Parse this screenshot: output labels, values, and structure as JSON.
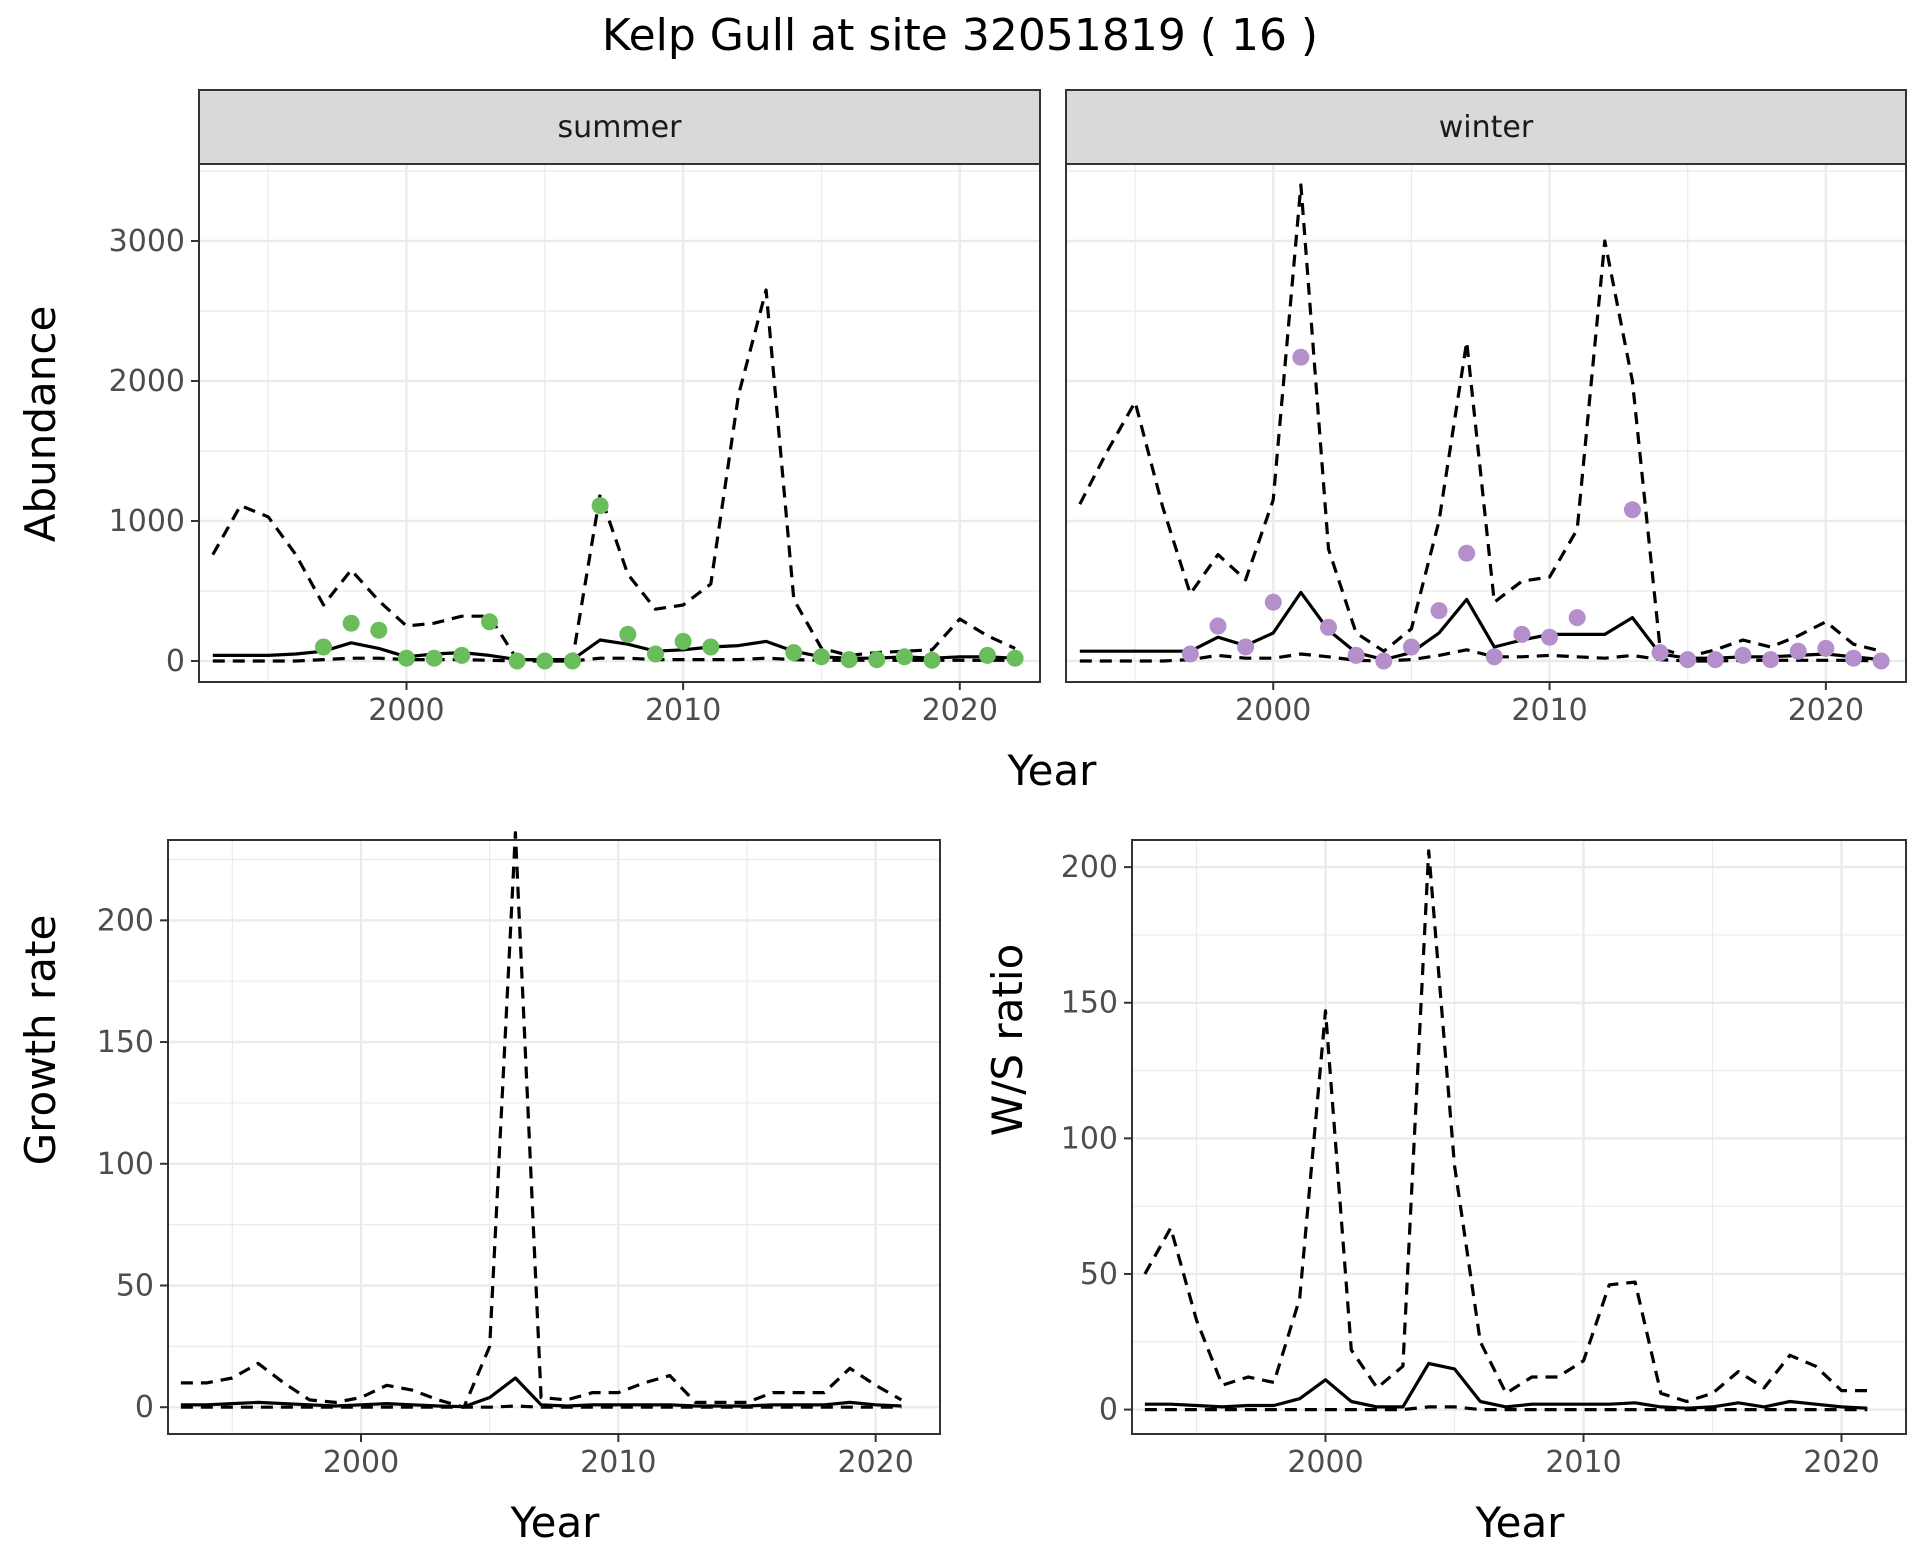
{
  "figure": {
    "title": "Kelp Gull at site 32051819 ( 16 )"
  },
  "colors": {
    "summer_points": "#6ABD5B",
    "winter_points": "#B48FCC",
    "line": "#000000",
    "strip": "#D9D9D9"
  },
  "chart_data": [
    {
      "id": "abundance",
      "type": "line",
      "title": "",
      "xlabel": "Year",
      "ylabel": "Abundance",
      "xlim": [
        1992.5,
        2022.9
      ],
      "ylim": [
        -150,
        3550
      ],
      "x_ticks": [
        2000,
        2010,
        2020
      ],
      "y_ticks": [
        0,
        1000,
        2000,
        3000
      ],
      "facets": [
        {
          "name": "summer",
          "label": "summer",
          "x": [
            1993,
            1994,
            1995,
            1996,
            1997,
            1998,
            1999,
            2000,
            2001,
            2002,
            2003,
            2004,
            2005,
            2006,
            2007,
            2008,
            2009,
            2010,
            2011,
            2012,
            2013,
            2014,
            2015,
            2016,
            2017,
            2018,
            2019,
            2020,
            2021,
            2022
          ],
          "series": [
            {
              "name": "upper",
              "style": "dashed",
              "values": [
                760,
                1110,
                1030,
                760,
                400,
                650,
                430,
                250,
                270,
                320,
                320,
                10,
                10,
                10,
                1190,
                620,
                370,
                400,
                550,
                1900,
                2650,
                440,
                90,
                40,
                60,
                70,
                80,
                300,
                180,
                90
              ]
            },
            {
              "name": "fit",
              "style": "solid",
              "values": [
                40,
                40,
                40,
                50,
                70,
                130,
                90,
                30,
                50,
                60,
                40,
                10,
                10,
                10,
                150,
                120,
                70,
                80,
                100,
                110,
                140,
                70,
                30,
                20,
                20,
                30,
                20,
                30,
                30,
                20
              ]
            },
            {
              "name": "lower",
              "style": "dashed",
              "values": [
                0,
                0,
                0,
                0,
                10,
                20,
                20,
                10,
                10,
                10,
                5,
                0,
                0,
                0,
                20,
                20,
                10,
                10,
                10,
                10,
                20,
                10,
                5,
                5,
                5,
                5,
                5,
                5,
                5,
                5
              ]
            }
          ],
          "points": {
            "x": [
              1997,
              1998,
              1999,
              2000,
              2001,
              2002,
              2003,
              2004,
              2005,
              2006,
              2007,
              2008,
              2009,
              2010,
              2011,
              2014,
              2015,
              2016,
              2017,
              2018,
              2019,
              2021,
              2022
            ],
            "y": [
              100,
              270,
              220,
              20,
              20,
              40,
              280,
              0,
              0,
              0,
              1110,
              190,
              50,
              140,
              100,
              60,
              30,
              10,
              10,
              30,
              5,
              40,
              20
            ]
          }
        },
        {
          "name": "winter",
          "label": "winter",
          "x": [
            1993,
            1994,
            1995,
            1996,
            1997,
            1998,
            1999,
            2000,
            2001,
            2002,
            2003,
            2004,
            2005,
            2006,
            2007,
            2008,
            2009,
            2010,
            2011,
            2012,
            2013,
            2014,
            2015,
            2016,
            2017,
            2018,
            2019,
            2020,
            2021,
            2022
          ],
          "series": [
            {
              "name": "upper",
              "style": "dashed",
              "values": [
                1120,
                1500,
                1850,
                1100,
                480,
                760,
                580,
                1150,
                3400,
                800,
                200,
                70,
                230,
                1000,
                2280,
                420,
                570,
                600,
                940,
                3000,
                2000,
                90,
                30,
                80,
                150,
                100,
                180,
                280,
                120,
                70
              ]
            },
            {
              "name": "fit",
              "style": "solid",
              "values": [
                70,
                70,
                70,
                70,
                70,
                170,
                110,
                200,
                490,
                220,
                60,
                10,
                60,
                200,
                440,
                100,
                150,
                190,
                190,
                190,
                310,
                50,
                20,
                20,
                30,
                30,
                40,
                50,
                30,
                10
              ]
            },
            {
              "name": "lower",
              "style": "dashed",
              "values": [
                0,
                0,
                0,
                0,
                10,
                40,
                20,
                20,
                50,
                30,
                5,
                0,
                10,
                40,
                80,
                30,
                30,
                40,
                30,
                20,
                40,
                10,
                0,
                0,
                5,
                5,
                5,
                5,
                5,
                0
              ]
            }
          ],
          "points": {
            "x": [
              1997,
              1998,
              1999,
              2000,
              2001,
              2002,
              2003,
              2004,
              2005,
              2006,
              2007,
              2008,
              2009,
              2010,
              2011,
              2013,
              2014,
              2015,
              2016,
              2017,
              2018,
              2019,
              2020,
              2021,
              2022
            ],
            "y": [
              50,
              250,
              100,
              420,
              2170,
              240,
              40,
              0,
              100,
              360,
              770,
              30,
              190,
              170,
              310,
              1080,
              60,
              10,
              10,
              40,
              10,
              70,
              90,
              20,
              0
            ]
          }
        }
      ]
    },
    {
      "id": "growth",
      "type": "line",
      "title": "",
      "xlabel": "Year",
      "ylabel": "Growth rate",
      "xlim": [
        1992.5,
        2022.5
      ],
      "ylim": [
        -11,
        233
      ],
      "x_ticks": [
        2000,
        2010,
        2020
      ],
      "y_ticks": [
        0,
        50,
        100,
        150,
        200
      ],
      "x": [
        1993,
        1994,
        1995,
        1996,
        1997,
        1998,
        1999,
        2000,
        2001,
        2002,
        2003,
        2004,
        2005,
        2006,
        2007,
        2008,
        2009,
        2010,
        2011,
        2012,
        2013,
        2014,
        2015,
        2016,
        2017,
        2018,
        2019,
        2020,
        2021
      ],
      "series": [
        {
          "name": "upper",
          "style": "dashed",
          "values": [
            10,
            10,
            12,
            18,
            10,
            3,
            2,
            4,
            9,
            7,
            3,
            0,
            25,
            236,
            4,
            3,
            6,
            6,
            10,
            13,
            2,
            2,
            2,
            6,
            6,
            6,
            16,
            9,
            3
          ]
        },
        {
          "name": "fit",
          "style": "solid",
          "values": [
            1,
            1,
            1.5,
            2,
            1.5,
            1,
            0.5,
            1,
            1.5,
            1,
            0.5,
            0.2,
            4,
            12,
            1,
            0.5,
            1,
            1,
            1,
            1,
            0.5,
            0.5,
            0.5,
            1,
            1,
            1,
            2,
            1,
            0.5
          ]
        },
        {
          "name": "lower",
          "style": "dashed",
          "values": [
            0,
            0,
            0,
            0,
            0,
            0,
            0,
            0,
            0,
            0,
            0,
            0,
            0,
            0.5,
            0,
            0,
            0,
            0,
            0,
            0,
            0,
            0,
            0,
            0,
            0,
            0,
            0,
            0,
            0
          ]
        }
      ]
    },
    {
      "id": "ws_ratio",
      "type": "line",
      "title": "",
      "xlabel": "Year",
      "ylabel": "W/S ratio",
      "xlim": [
        1992.5,
        2022.5
      ],
      "ylim": [
        -9,
        210
      ],
      "x_ticks": [
        2000,
        2010,
        2020
      ],
      "y_ticks": [
        0,
        50,
        100,
        150,
        200
      ],
      "x": [
        1993,
        1994,
        1995,
        1996,
        1997,
        1998,
        1999,
        2000,
        2001,
        2002,
        2003,
        2004,
        2005,
        2006,
        2007,
        2008,
        2009,
        2010,
        2011,
        2012,
        2013,
        2014,
        2015,
        2016,
        2017,
        2018,
        2019,
        2020,
        2021
      ],
      "series": [
        {
          "name": "upper",
          "style": "dashed",
          "values": [
            50,
            67,
            33,
            9,
            12,
            10,
            41,
            147,
            22,
            8,
            16,
            206,
            90,
            25,
            6,
            12,
            12,
            18,
            46,
            47,
            6,
            3,
            6,
            14,
            8,
            20,
            16,
            7,
            7
          ]
        },
        {
          "name": "fit",
          "style": "solid",
          "values": [
            2,
            2,
            1.5,
            1,
            1.5,
            1.5,
            4,
            11,
            3,
            1,
            1,
            17,
            15,
            3,
            1,
            2,
            2,
            2,
            2,
            2.5,
            1,
            0.5,
            1,
            2.5,
            1,
            3,
            2,
            1,
            0.5
          ]
        },
        {
          "name": "lower",
          "style": "dashed",
          "values": [
            0,
            0,
            0,
            0,
            0,
            0,
            0,
            0,
            0,
            0,
            0,
            1,
            1,
            0,
            0,
            0,
            0,
            0,
            0,
            0,
            0,
            0,
            0,
            0,
            0,
            0,
            0,
            0,
            0
          ]
        }
      ]
    }
  ]
}
